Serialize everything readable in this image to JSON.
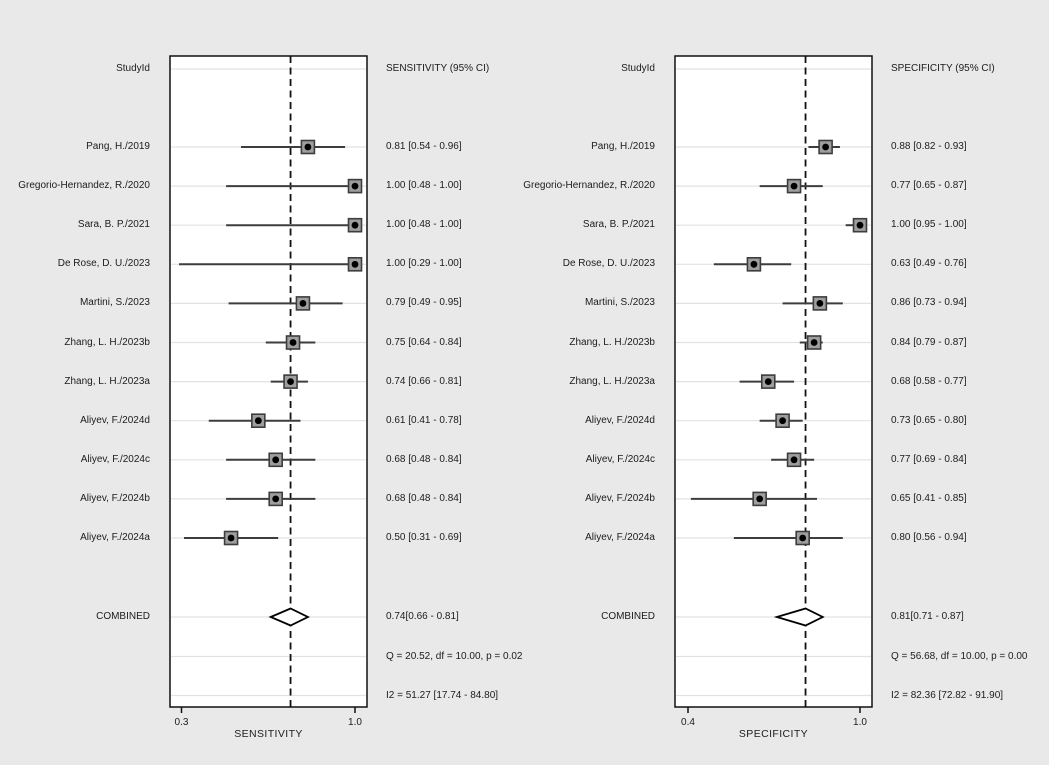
{
  "figure": {
    "background_color": "#e9e9e9",
    "plot_background_color": "#ffffff",
    "row_guideline_color": "#e2e2e2",
    "line_color": "#3d3d3d",
    "marker_fill_color": "#9e9e9e",
    "marker_border_color": "#3d3d3d",
    "marker_dot_color": "#000000",
    "frame_color": "#111111"
  },
  "chart_data": [
    {
      "type": "forest",
      "panel": "sensitivity",
      "studyid_header": "StudyId",
      "value_header": "SENSITIVITY (95% CI)",
      "xlabel": "SENSITIVITY",
      "axis": {
        "tick_labels": [
          "0.3",
          "1.0"
        ],
        "tick_values": [
          0.3,
          1.0
        ],
        "range": [
          0.3,
          1.0
        ],
        "grid": "row-guidelines",
        "dashed_reference_line_at": 0.74
      },
      "studies": [
        {
          "label": "Pang, H./2019",
          "value": 0.81,
          "ci": [
            0.54,
            0.96
          ],
          "display": "0.81 [0.54 - 0.96]"
        },
        {
          "label": "Gregorio-Hernandez, R./2020",
          "value": 1.0,
          "ci": [
            0.48,
            1.0
          ],
          "display": "1.00 [0.48 - 1.00]"
        },
        {
          "label": "Sara, B. P./2021",
          "value": 1.0,
          "ci": [
            0.48,
            1.0
          ],
          "display": "1.00 [0.48 - 1.00]"
        },
        {
          "label": "De Rose, D. U./2023",
          "value": 1.0,
          "ci": [
            0.29,
            1.0
          ],
          "display": "1.00 [0.29 - 1.00]"
        },
        {
          "label": "Martini, S./2023",
          "value": 0.79,
          "ci": [
            0.49,
            0.95
          ],
          "display": "0.79 [0.49 - 0.95]"
        },
        {
          "label": "Zhang, L. H./2023b",
          "value": 0.75,
          "ci": [
            0.64,
            0.84
          ],
          "display": "0.75 [0.64 - 0.84]"
        },
        {
          "label": "Zhang, L. H./2023a",
          "value": 0.74,
          "ci": [
            0.66,
            0.81
          ],
          "display": "0.74 [0.66 - 0.81]"
        },
        {
          "label": "Aliyev, F./2024d",
          "value": 0.61,
          "ci": [
            0.41,
            0.78
          ],
          "display": "0.61 [0.41 - 0.78]"
        },
        {
          "label": "Aliyev, F./2024c",
          "value": 0.68,
          "ci": [
            0.48,
            0.84
          ],
          "display": "0.68 [0.48 - 0.84]"
        },
        {
          "label": "Aliyev, F./2024b",
          "value": 0.68,
          "ci": [
            0.48,
            0.84
          ],
          "display": "0.68 [0.48 - 0.84]"
        },
        {
          "label": "Aliyev, F./2024a",
          "value": 0.5,
          "ci": [
            0.31,
            0.69
          ],
          "display": "0.50 [0.31 - 0.69]"
        }
      ],
      "combined": {
        "label": "COMBINED",
        "value": 0.74,
        "ci": [
          0.66,
          0.81
        ],
        "display": "0.74[0.66 - 0.81]"
      },
      "heterogeneity_q": "Q = 20.52, df = 10.00, p = 0.02",
      "heterogeneity_i2": "I2 = 51.27 [17.74 - 84.80]"
    },
    {
      "type": "forest",
      "panel": "specificity",
      "studyid_header": "StudyId",
      "value_header": "SPECIFICITY (95% CI)",
      "xlabel": "SPECIFICITY",
      "axis": {
        "tick_labels": [
          "0.4",
          "1.0"
        ],
        "tick_values": [
          0.4,
          1.0
        ],
        "range": [
          0.4,
          1.0
        ],
        "grid": "row-guidelines",
        "dashed_reference_line_at": 0.81
      },
      "studies": [
        {
          "label": "Pang, H./2019",
          "value": 0.88,
          "ci": [
            0.82,
            0.93
          ],
          "display": "0.88 [0.82 - 0.93]"
        },
        {
          "label": "Gregorio-Hernandez, R./2020",
          "value": 0.77,
          "ci": [
            0.65,
            0.87
          ],
          "display": "0.77 [0.65 - 0.87]"
        },
        {
          "label": "Sara, B. P./2021",
          "value": 1.0,
          "ci": [
            0.95,
            1.0
          ],
          "display": "1.00 [0.95 - 1.00]"
        },
        {
          "label": "De Rose, D. U./2023",
          "value": 0.63,
          "ci": [
            0.49,
            0.76
          ],
          "display": "0.63 [0.49 - 0.76]"
        },
        {
          "label": "Martini, S./2023",
          "value": 0.86,
          "ci": [
            0.73,
            0.94
          ],
          "display": "0.86 [0.73 - 0.94]"
        },
        {
          "label": "Zhang, L. H./2023b",
          "value": 0.84,
          "ci": [
            0.79,
            0.87
          ],
          "display": "0.84 [0.79 - 0.87]"
        },
        {
          "label": "Zhang, L. H./2023a",
          "value": 0.68,
          "ci": [
            0.58,
            0.77
          ],
          "display": "0.68 [0.58 - 0.77]"
        },
        {
          "label": "Aliyev, F./2024d",
          "value": 0.73,
          "ci": [
            0.65,
            0.8
          ],
          "display": "0.73 [0.65 - 0.80]"
        },
        {
          "label": "Aliyev, F./2024c",
          "value": 0.77,
          "ci": [
            0.69,
            0.84
          ],
          "display": "0.77 [0.69 - 0.84]"
        },
        {
          "label": "Aliyev, F./2024b",
          "value": 0.65,
          "ci": [
            0.41,
            0.85
          ],
          "display": "0.65 [0.41 - 0.85]"
        },
        {
          "label": "Aliyev, F./2024a",
          "value": 0.8,
          "ci": [
            0.56,
            0.94
          ],
          "display": "0.80 [0.56 - 0.94]"
        }
      ],
      "combined": {
        "label": "COMBINED",
        "value": 0.81,
        "ci": [
          0.71,
          0.87
        ],
        "display": "0.81[0.71 - 0.87]"
      },
      "heterogeneity_q": "Q = 56.68, df = 10.00, p = 0.00",
      "heterogeneity_i2": "I2 = 82.36 [72.82 - 91.90]"
    }
  ]
}
